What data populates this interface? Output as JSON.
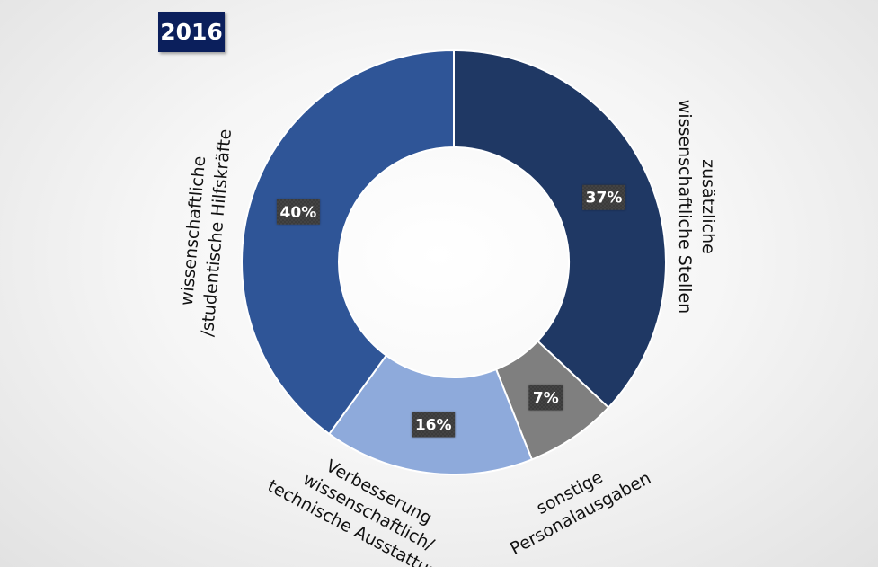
{
  "year_badge": "2016",
  "colors": {
    "zusaetzliche": "#1f3864",
    "sonstige": "#7f7f7f",
    "verbesserung": "#8eaadb",
    "hilfskraefte": "#2f5597",
    "badge": "#0b1f5c",
    "label_box": "#3a3a3a"
  },
  "chart_data": {
    "type": "pie",
    "donut": true,
    "title": "2016",
    "legend": "none",
    "slices": [
      {
        "label_lines": [
          "zusätzliche",
          "wissenschaftliche Stellen"
        ],
        "value": 37,
        "value_label": "37%",
        "color": "#1f3864"
      },
      {
        "label_lines": [
          "sonstige",
          "Personalausgaben"
        ],
        "value": 7,
        "value_label": "7%",
        "color": "#7f7f7f"
      },
      {
        "label_lines": [
          "Verbesserung",
          "wissenschaftlich/",
          "technische Ausstattung"
        ],
        "value": 16,
        "value_label": "16%",
        "color": "#8eaadb"
      },
      {
        "label_lines": [
          "wissenschaftliche",
          "/studentische Hilfskräfte"
        ],
        "value": 40,
        "value_label": "40%",
        "color": "#2f5597"
      }
    ]
  }
}
